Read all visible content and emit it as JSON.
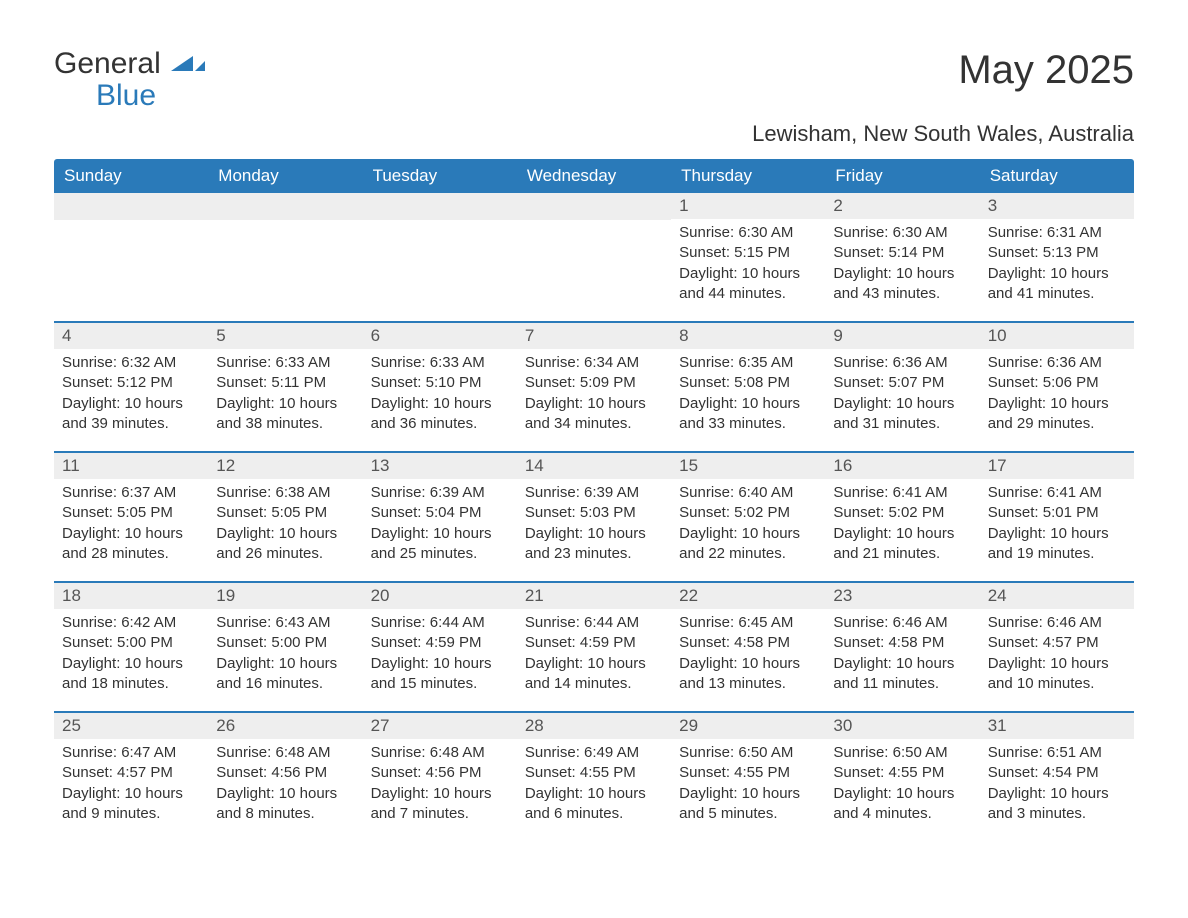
{
  "logo": {
    "text1": "General",
    "text2": "Blue",
    "accent": "#2a7ab9"
  },
  "title": "May 2025",
  "location": "Lewisham, New South Wales, Australia",
  "colors": {
    "header_bg": "#2a7ab9",
    "header_text": "#ffffff",
    "daynum_bg": "#eeeeee",
    "body_text": "#333333",
    "border": "#2a7ab9"
  },
  "dayHeaders": [
    "Sunday",
    "Monday",
    "Tuesday",
    "Wednesday",
    "Thursday",
    "Friday",
    "Saturday"
  ],
  "weeks": [
    [
      null,
      null,
      null,
      null,
      {
        "n": "1",
        "sunrise": "Sunrise: 6:30 AM",
        "sunset": "Sunset: 5:15 PM",
        "dl1": "Daylight: 10 hours",
        "dl2": "and 44 minutes."
      },
      {
        "n": "2",
        "sunrise": "Sunrise: 6:30 AM",
        "sunset": "Sunset: 5:14 PM",
        "dl1": "Daylight: 10 hours",
        "dl2": "and 43 minutes."
      },
      {
        "n": "3",
        "sunrise": "Sunrise: 6:31 AM",
        "sunset": "Sunset: 5:13 PM",
        "dl1": "Daylight: 10 hours",
        "dl2": "and 41 minutes."
      }
    ],
    [
      {
        "n": "4",
        "sunrise": "Sunrise: 6:32 AM",
        "sunset": "Sunset: 5:12 PM",
        "dl1": "Daylight: 10 hours",
        "dl2": "and 39 minutes."
      },
      {
        "n": "5",
        "sunrise": "Sunrise: 6:33 AM",
        "sunset": "Sunset: 5:11 PM",
        "dl1": "Daylight: 10 hours",
        "dl2": "and 38 minutes."
      },
      {
        "n": "6",
        "sunrise": "Sunrise: 6:33 AM",
        "sunset": "Sunset: 5:10 PM",
        "dl1": "Daylight: 10 hours",
        "dl2": "and 36 minutes."
      },
      {
        "n": "7",
        "sunrise": "Sunrise: 6:34 AM",
        "sunset": "Sunset: 5:09 PM",
        "dl1": "Daylight: 10 hours",
        "dl2": "and 34 minutes."
      },
      {
        "n": "8",
        "sunrise": "Sunrise: 6:35 AM",
        "sunset": "Sunset: 5:08 PM",
        "dl1": "Daylight: 10 hours",
        "dl2": "and 33 minutes."
      },
      {
        "n": "9",
        "sunrise": "Sunrise: 6:36 AM",
        "sunset": "Sunset: 5:07 PM",
        "dl1": "Daylight: 10 hours",
        "dl2": "and 31 minutes."
      },
      {
        "n": "10",
        "sunrise": "Sunrise: 6:36 AM",
        "sunset": "Sunset: 5:06 PM",
        "dl1": "Daylight: 10 hours",
        "dl2": "and 29 minutes."
      }
    ],
    [
      {
        "n": "11",
        "sunrise": "Sunrise: 6:37 AM",
        "sunset": "Sunset: 5:05 PM",
        "dl1": "Daylight: 10 hours",
        "dl2": "and 28 minutes."
      },
      {
        "n": "12",
        "sunrise": "Sunrise: 6:38 AM",
        "sunset": "Sunset: 5:05 PM",
        "dl1": "Daylight: 10 hours",
        "dl2": "and 26 minutes."
      },
      {
        "n": "13",
        "sunrise": "Sunrise: 6:39 AM",
        "sunset": "Sunset: 5:04 PM",
        "dl1": "Daylight: 10 hours",
        "dl2": "and 25 minutes."
      },
      {
        "n": "14",
        "sunrise": "Sunrise: 6:39 AM",
        "sunset": "Sunset: 5:03 PM",
        "dl1": "Daylight: 10 hours",
        "dl2": "and 23 minutes."
      },
      {
        "n": "15",
        "sunrise": "Sunrise: 6:40 AM",
        "sunset": "Sunset: 5:02 PM",
        "dl1": "Daylight: 10 hours",
        "dl2": "and 22 minutes."
      },
      {
        "n": "16",
        "sunrise": "Sunrise: 6:41 AM",
        "sunset": "Sunset: 5:02 PM",
        "dl1": "Daylight: 10 hours",
        "dl2": "and 21 minutes."
      },
      {
        "n": "17",
        "sunrise": "Sunrise: 6:41 AM",
        "sunset": "Sunset: 5:01 PM",
        "dl1": "Daylight: 10 hours",
        "dl2": "and 19 minutes."
      }
    ],
    [
      {
        "n": "18",
        "sunrise": "Sunrise: 6:42 AM",
        "sunset": "Sunset: 5:00 PM",
        "dl1": "Daylight: 10 hours",
        "dl2": "and 18 minutes."
      },
      {
        "n": "19",
        "sunrise": "Sunrise: 6:43 AM",
        "sunset": "Sunset: 5:00 PM",
        "dl1": "Daylight: 10 hours",
        "dl2": "and 16 minutes."
      },
      {
        "n": "20",
        "sunrise": "Sunrise: 6:44 AM",
        "sunset": "Sunset: 4:59 PM",
        "dl1": "Daylight: 10 hours",
        "dl2": "and 15 minutes."
      },
      {
        "n": "21",
        "sunrise": "Sunrise: 6:44 AM",
        "sunset": "Sunset: 4:59 PM",
        "dl1": "Daylight: 10 hours",
        "dl2": "and 14 minutes."
      },
      {
        "n": "22",
        "sunrise": "Sunrise: 6:45 AM",
        "sunset": "Sunset: 4:58 PM",
        "dl1": "Daylight: 10 hours",
        "dl2": "and 13 minutes."
      },
      {
        "n": "23",
        "sunrise": "Sunrise: 6:46 AM",
        "sunset": "Sunset: 4:58 PM",
        "dl1": "Daylight: 10 hours",
        "dl2": "and 11 minutes."
      },
      {
        "n": "24",
        "sunrise": "Sunrise: 6:46 AM",
        "sunset": "Sunset: 4:57 PM",
        "dl1": "Daylight: 10 hours",
        "dl2": "and 10 minutes."
      }
    ],
    [
      {
        "n": "25",
        "sunrise": "Sunrise: 6:47 AM",
        "sunset": "Sunset: 4:57 PM",
        "dl1": "Daylight: 10 hours",
        "dl2": "and 9 minutes."
      },
      {
        "n": "26",
        "sunrise": "Sunrise: 6:48 AM",
        "sunset": "Sunset: 4:56 PM",
        "dl1": "Daylight: 10 hours",
        "dl2": "and 8 minutes."
      },
      {
        "n": "27",
        "sunrise": "Sunrise: 6:48 AM",
        "sunset": "Sunset: 4:56 PM",
        "dl1": "Daylight: 10 hours",
        "dl2": "and 7 minutes."
      },
      {
        "n": "28",
        "sunrise": "Sunrise: 6:49 AM",
        "sunset": "Sunset: 4:55 PM",
        "dl1": "Daylight: 10 hours",
        "dl2": "and 6 minutes."
      },
      {
        "n": "29",
        "sunrise": "Sunrise: 6:50 AM",
        "sunset": "Sunset: 4:55 PM",
        "dl1": "Daylight: 10 hours",
        "dl2": "and 5 minutes."
      },
      {
        "n": "30",
        "sunrise": "Sunrise: 6:50 AM",
        "sunset": "Sunset: 4:55 PM",
        "dl1": "Daylight: 10 hours",
        "dl2": "and 4 minutes."
      },
      {
        "n": "31",
        "sunrise": "Sunrise: 6:51 AM",
        "sunset": "Sunset: 4:54 PM",
        "dl1": "Daylight: 10 hours",
        "dl2": "and 3 minutes."
      }
    ]
  ]
}
